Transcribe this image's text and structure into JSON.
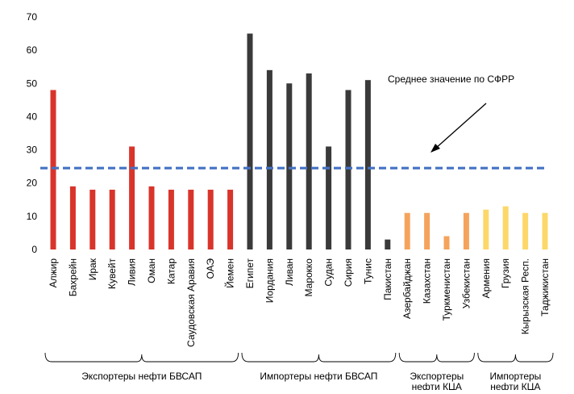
{
  "chart_data": {
    "type": "bar",
    "ylim": [
      0,
      70
    ],
    "yticks": [
      0,
      10,
      20,
      30,
      40,
      50,
      60,
      70
    ],
    "grid": false,
    "categories": [
      "Алжир",
      "Бахрейн",
      "Ирак",
      "Кувейт",
      "Ливия",
      "Оман",
      "Катар",
      "Саудовская Аравия",
      "ОАЭ",
      "Йемен",
      "Египет",
      "Иордания",
      "Ливан",
      "Марокко",
      "Судан",
      "Сирия",
      "Тунис",
      "Пакистан",
      "Азербайджан",
      "Казахстан",
      "Туркменистан",
      "Узбекистан",
      "Армения",
      "Грузия",
      "Кырызская Респ.",
      "Таджикистан"
    ],
    "values": [
      48,
      19,
      18,
      18,
      31,
      19,
      18,
      18,
      18,
      18,
      65,
      54,
      50,
      53,
      31,
      48,
      51,
      3,
      11,
      11,
      4,
      11,
      12,
      13,
      11,
      11
    ],
    "bar_colors": [
      "#d9342b",
      "#d9342b",
      "#d9342b",
      "#d9342b",
      "#d9342b",
      "#d9342b",
      "#d9342b",
      "#d9342b",
      "#d9342b",
      "#d9342b",
      "#3a3a3a",
      "#3a3a3a",
      "#3a3a3a",
      "#3a3a3a",
      "#3a3a3a",
      "#3a3a3a",
      "#3a3a3a",
      "#3a3a3a",
      "#f5a35c",
      "#f5a35c",
      "#f5a35c",
      "#f5a35c",
      "#fcd86a",
      "#fcd86a",
      "#fcd86a",
      "#fcd86a"
    ],
    "groups": [
      {
        "label": "Экспортеры нефти БВСАП",
        "start": 0,
        "end": 9
      },
      {
        "label": "Импортеры нефти БВСАП",
        "start": 10,
        "end": 17
      },
      {
        "label": "Экспортеры нефти КЦА",
        "start": 18,
        "end": 21
      },
      {
        "label": "Импортеры нефти КЦА",
        "start": 22,
        "end": 25
      }
    ],
    "reference_line": {
      "value": 24.5,
      "color": "#4472c4",
      "style": "dashed"
    },
    "annotation": "Среднее  значение по СФРР"
  }
}
